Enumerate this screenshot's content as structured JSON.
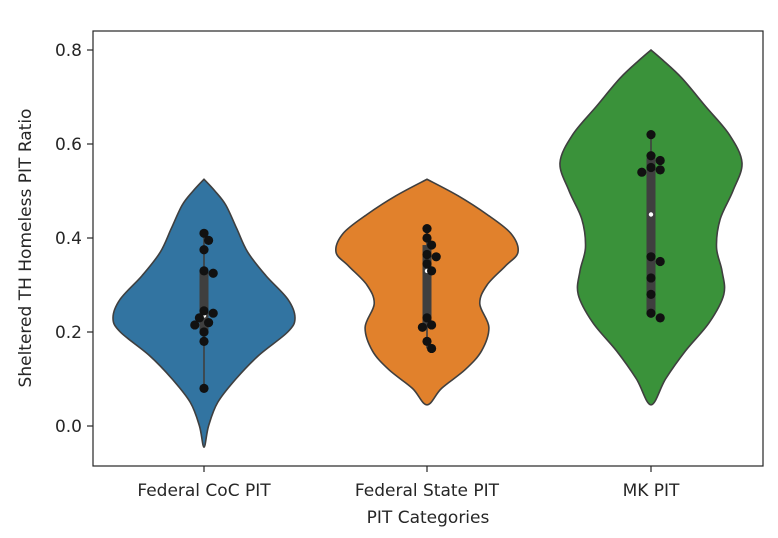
{
  "chart_data": {
    "type": "violin",
    "xlabel": "PIT Categories",
    "ylabel": "Sheltered TH Homeless PIT Ratio",
    "ylim": [
      -0.085,
      0.845
    ],
    "yticks": [
      "0.0",
      "0.2",
      "0.4",
      "0.6",
      "0.8"
    ],
    "ytick_values": [
      0.0,
      0.2,
      0.4,
      0.6,
      0.8
    ],
    "grid": false,
    "categories": [
      "Federal CoC PIT",
      "Federal State PIT",
      "MK PIT"
    ],
    "series": [
      {
        "category": "Federal CoC PIT",
        "color": "#3274a1",
        "points": [
          0.41,
          0.395,
          0.375,
          0.33,
          0.325,
          0.245,
          0.24,
          0.23,
          0.22,
          0.215,
          0.2,
          0.18,
          0.08
        ],
        "median": 0.235,
        "iqr": [
          0.2,
          0.33
        ],
        "violin_min": -0.045,
        "violin_max": 0.525,
        "profile": [
          [
            -0.045,
            0.0
          ],
          [
            0.0,
            0.05
          ],
          [
            0.05,
            0.15
          ],
          [
            0.1,
            0.35
          ],
          [
            0.15,
            0.6
          ],
          [
            0.2,
            0.92
          ],
          [
            0.23,
            1.0
          ],
          [
            0.27,
            0.92
          ],
          [
            0.32,
            0.68
          ],
          [
            0.37,
            0.48
          ],
          [
            0.42,
            0.36
          ],
          [
            0.47,
            0.24
          ],
          [
            0.5,
            0.12
          ],
          [
            0.525,
            0.0
          ]
        ]
      },
      {
        "category": "Federal State PIT",
        "color": "#e1812c",
        "points": [
          0.42,
          0.4,
          0.385,
          0.365,
          0.36,
          0.345,
          0.33,
          0.23,
          0.215,
          0.21,
          0.18,
          0.165
        ],
        "median": 0.33,
        "iqr": [
          0.21,
          0.385
        ],
        "violin_min": 0.045,
        "violin_max": 0.525,
        "profile": [
          [
            0.045,
            0.0
          ],
          [
            0.08,
            0.16
          ],
          [
            0.12,
            0.42
          ],
          [
            0.16,
            0.6
          ],
          [
            0.21,
            0.68
          ],
          [
            0.26,
            0.58
          ],
          [
            0.3,
            0.66
          ],
          [
            0.34,
            0.86
          ],
          [
            0.37,
            1.0
          ],
          [
            0.41,
            0.92
          ],
          [
            0.45,
            0.66
          ],
          [
            0.49,
            0.34
          ],
          [
            0.525,
            0.0
          ]
        ]
      },
      {
        "category": "MK PIT",
        "color": "#3a923a",
        "points": [
          0.62,
          0.575,
          0.565,
          0.55,
          0.545,
          0.54,
          0.36,
          0.35,
          0.315,
          0.28,
          0.24,
          0.23
        ],
        "median": 0.45,
        "iqr": [
          0.24,
          0.57
        ],
        "violin_min": 0.045,
        "violin_max": 0.8,
        "profile": [
          [
            0.045,
            0.0
          ],
          [
            0.1,
            0.16
          ],
          [
            0.16,
            0.38
          ],
          [
            0.22,
            0.64
          ],
          [
            0.28,
            0.8
          ],
          [
            0.33,
            0.78
          ],
          [
            0.38,
            0.72
          ],
          [
            0.44,
            0.76
          ],
          [
            0.5,
            0.9
          ],
          [
            0.56,
            1.0
          ],
          [
            0.62,
            0.86
          ],
          [
            0.68,
            0.6
          ],
          [
            0.74,
            0.34
          ],
          [
            0.78,
            0.12
          ],
          [
            0.8,
            0.0
          ]
        ]
      }
    ]
  }
}
